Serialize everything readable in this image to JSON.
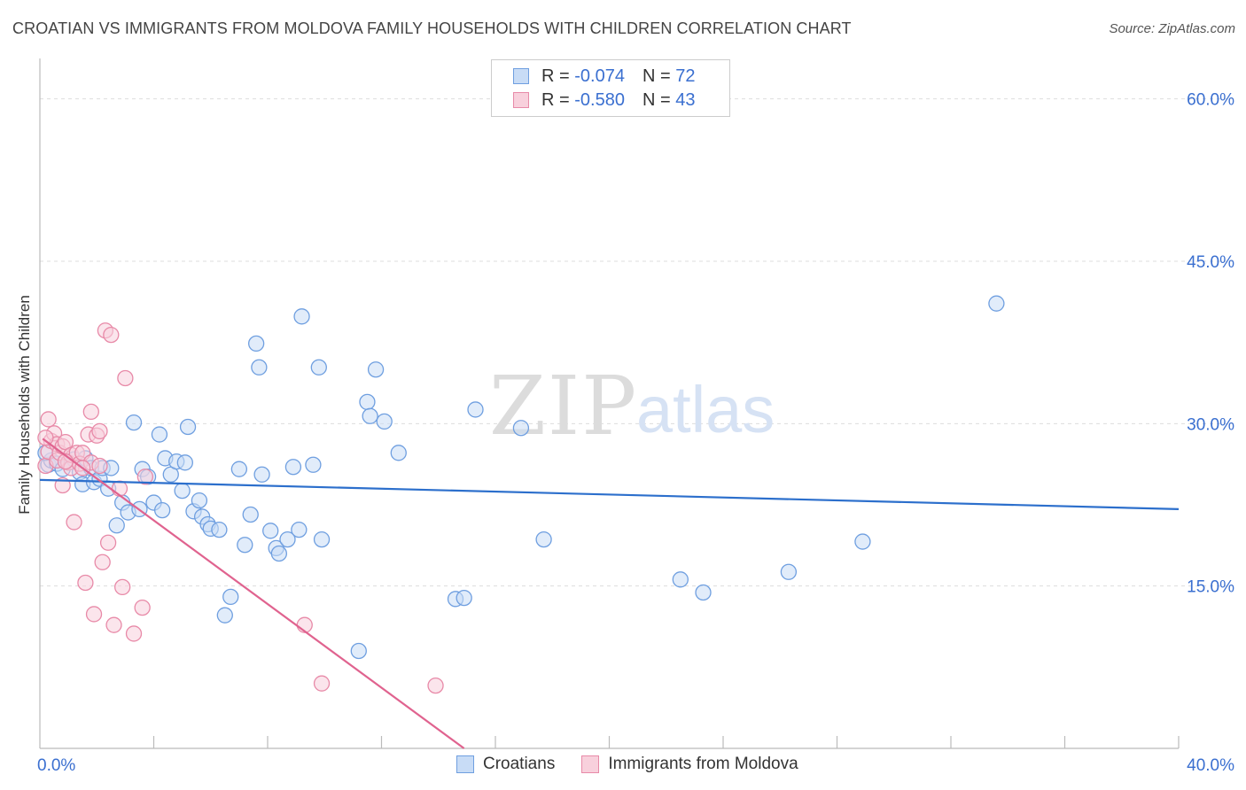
{
  "header": {
    "title": "CROATIAN VS IMMIGRANTS FROM MOLDOVA FAMILY HOUSEHOLDS WITH CHILDREN CORRELATION CHART",
    "source": "Source: ZipAtlas.com"
  },
  "watermark": {
    "zip": "ZIP",
    "atlas": "atlas"
  },
  "stats_legend": {
    "rows": [
      {
        "r_label": "R =",
        "r_value": "-0.074",
        "n_label": "N =",
        "n_value": "72",
        "color": "#a9c6ef"
      },
      {
        "r_label": "R =",
        "r_value": "-0.580",
        "n_label": "N =",
        "n_value": "43",
        "color": "#f4b4c8"
      }
    ]
  },
  "bottom_legend": {
    "items": [
      {
        "label": "Croatians",
        "color": "#a9c6ef"
      },
      {
        "label": "Immigrants from Moldova",
        "color": "#f4b4c8"
      }
    ]
  },
  "chart_data": {
    "type": "scatter",
    "title": "CROATIAN VS IMMIGRANTS FROM MOLDOVA FAMILY HOUSEHOLDS WITH CHILDREN CORRELATION CHART",
    "xlabel": "",
    "ylabel": "Family Households with Children",
    "xlim": [
      0,
      40
    ],
    "ylim": [
      0,
      63
    ],
    "x_tick_labels": [
      "0.0%",
      "40.0%"
    ],
    "y_ticks": [
      15,
      30,
      45,
      60
    ],
    "y_tick_labels": [
      "15.0%",
      "30.0%",
      "45.0%",
      "60.0%"
    ],
    "grid": true,
    "legend_position": "bottom-center",
    "series": [
      {
        "name": "Croatians",
        "color": "#6f9fe0",
        "fill": "#c8dcf6",
        "trend": {
          "x": [
            0,
            40
          ],
          "y": [
            24.8,
            22.1
          ],
          "color": "#2c6fcc"
        },
        "points": [
          [
            0.3,
            26.2
          ],
          [
            0.4,
            26.6
          ],
          [
            0.6,
            26.3
          ],
          [
            0.8,
            25.8
          ],
          [
            1.0,
            26.4
          ],
          [
            1.2,
            26.7
          ],
          [
            1.4,
            25.5
          ],
          [
            1.5,
            24.4
          ],
          [
            1.6,
            26.8
          ],
          [
            1.8,
            25.9
          ],
          [
            1.9,
            24.6
          ],
          [
            2.1,
            24.9
          ],
          [
            2.2,
            25.9
          ],
          [
            2.4,
            24.0
          ],
          [
            2.5,
            25.9
          ],
          [
            2.7,
            20.6
          ],
          [
            2.9,
            22.7
          ],
          [
            3.1,
            21.8
          ],
          [
            3.3,
            30.1
          ],
          [
            3.5,
            22.1
          ],
          [
            3.6,
            25.8
          ],
          [
            3.8,
            25.1
          ],
          [
            4.0,
            22.7
          ],
          [
            4.2,
            29.0
          ],
          [
            4.3,
            22.0
          ],
          [
            4.4,
            26.8
          ],
          [
            4.6,
            25.3
          ],
          [
            4.8,
            26.5
          ],
          [
            5.0,
            23.8
          ],
          [
            5.1,
            26.4
          ],
          [
            5.2,
            29.7
          ],
          [
            5.4,
            21.9
          ],
          [
            5.6,
            22.9
          ],
          [
            5.7,
            21.4
          ],
          [
            5.9,
            20.7
          ],
          [
            6.0,
            20.3
          ],
          [
            6.3,
            20.2
          ],
          [
            6.5,
            12.3
          ],
          [
            6.7,
            14.0
          ],
          [
            7.0,
            25.8
          ],
          [
            7.2,
            18.8
          ],
          [
            7.4,
            21.6
          ],
          [
            7.6,
            37.4
          ],
          [
            7.7,
            35.2
          ],
          [
            7.8,
            25.3
          ],
          [
            8.1,
            20.1
          ],
          [
            8.3,
            18.5
          ],
          [
            8.4,
            18.0
          ],
          [
            8.7,
            19.3
          ],
          [
            8.9,
            26.0
          ],
          [
            9.1,
            20.2
          ],
          [
            9.2,
            39.9
          ],
          [
            9.6,
            26.2
          ],
          [
            9.8,
            35.2
          ],
          [
            9.9,
            19.3
          ],
          [
            11.2,
            9.0
          ],
          [
            11.5,
            32.0
          ],
          [
            11.6,
            30.7
          ],
          [
            11.8,
            35.0
          ],
          [
            12.1,
            30.2
          ],
          [
            12.6,
            27.3
          ],
          [
            14.6,
            13.8
          ],
          [
            14.9,
            13.9
          ],
          [
            15.3,
            31.3
          ],
          [
            16.9,
            29.6
          ],
          [
            17.7,
            19.3
          ],
          [
            22.5,
            15.6
          ],
          [
            23.3,
            14.4
          ],
          [
            26.3,
            16.3
          ],
          [
            28.9,
            19.1
          ],
          [
            33.6,
            41.1
          ],
          [
            0.2,
            27.3
          ]
        ]
      },
      {
        "name": "Immigrants from Moldova",
        "color": "#e88aa8",
        "fill": "#f8d0dc",
        "trend": {
          "x": [
            0.1,
            14.9
          ],
          "y": [
            28.6,
            0
          ],
          "color": "#e0638f"
        },
        "points": [
          [
            0.2,
            26.1
          ],
          [
            0.3,
            27.4
          ],
          [
            0.3,
            30.4
          ],
          [
            0.4,
            28.4
          ],
          [
            0.5,
            29.1
          ],
          [
            0.6,
            28.1
          ],
          [
            0.6,
            26.6
          ],
          [
            0.7,
            27.3
          ],
          [
            0.8,
            27.9
          ],
          [
            0.8,
            24.3
          ],
          [
            0.9,
            28.3
          ],
          [
            1.0,
            26.4
          ],
          [
            1.1,
            25.9
          ],
          [
            1.1,
            27.1
          ],
          [
            1.2,
            20.9
          ],
          [
            1.3,
            27.3
          ],
          [
            1.4,
            26.3
          ],
          [
            1.5,
            27.3
          ],
          [
            1.6,
            15.3
          ],
          [
            1.7,
            29.0
          ],
          [
            1.8,
            31.1
          ],
          [
            1.8,
            26.4
          ],
          [
            1.9,
            12.4
          ],
          [
            2.0,
            28.9
          ],
          [
            2.1,
            29.3
          ],
          [
            2.1,
            26.1
          ],
          [
            2.2,
            17.2
          ],
          [
            2.3,
            38.6
          ],
          [
            2.4,
            19.0
          ],
          [
            2.5,
            38.2
          ],
          [
            2.6,
            11.4
          ],
          [
            2.8,
            24.0
          ],
          [
            2.9,
            14.9
          ],
          [
            3.0,
            34.2
          ],
          [
            3.3,
            10.6
          ],
          [
            3.6,
            13.0
          ],
          [
            3.7,
            25.1
          ],
          [
            9.3,
            11.4
          ],
          [
            9.9,
            6.0
          ],
          [
            13.9,
            5.8
          ],
          [
            0.2,
            28.7
          ],
          [
            0.9,
            26.5
          ],
          [
            1.5,
            25.9
          ]
        ]
      }
    ]
  }
}
